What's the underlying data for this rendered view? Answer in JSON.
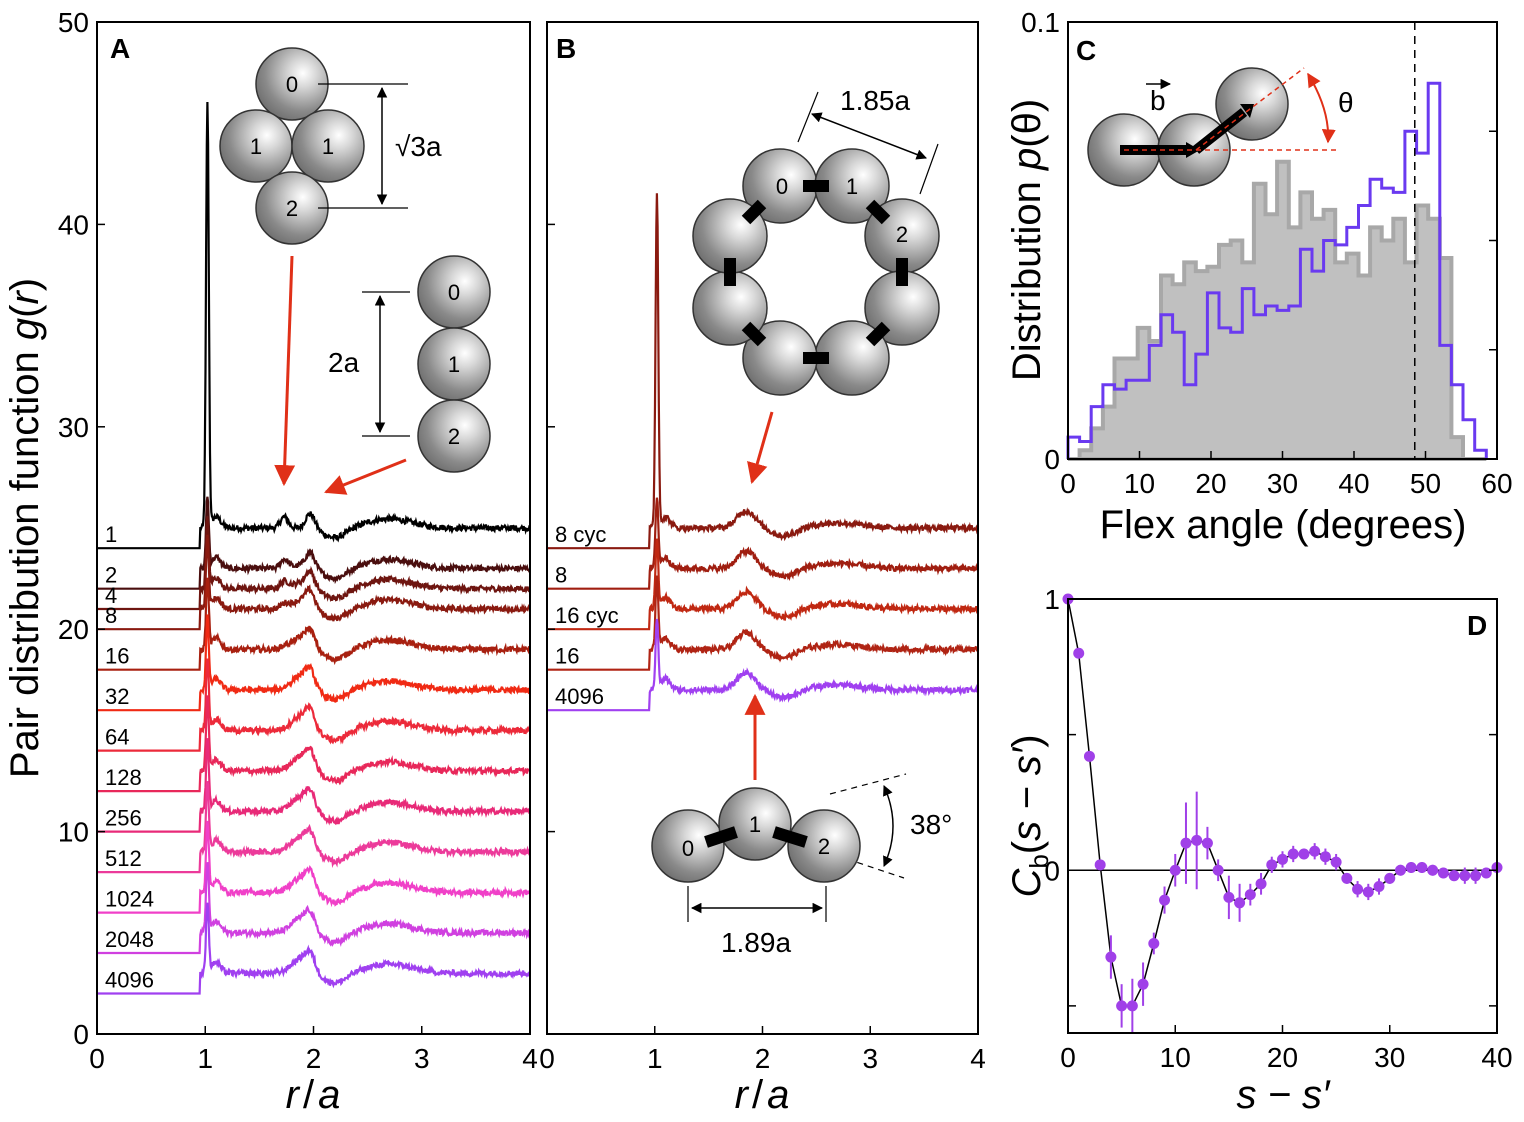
{
  "chart_data": [
    {
      "panel": "A",
      "type": "line",
      "ylabel_main": "Pair distribution function ",
      "ylabel_var": "g",
      "ylabel_arg": "r",
      "xlabel_var1": "r",
      "xlabel_sep": "/",
      "xlabel_var2": "a",
      "xlim": [
        0,
        4
      ],
      "ylim": [
        0,
        50
      ],
      "xticks": [
        "0",
        "1",
        "2",
        "3",
        "4"
      ],
      "yticks": [
        "0",
        "10",
        "20",
        "30",
        "40",
        "50"
      ],
      "series": [
        {
          "name": "1",
          "offset": 24,
          "color": "#000000"
        },
        {
          "name": "2",
          "offset": 22,
          "color": "#4a0e0e"
        },
        {
          "name": "4",
          "offset": 21,
          "color": "#6e1510"
        },
        {
          "name": "8",
          "offset": 20,
          "color": "#8a1a10"
        },
        {
          "name": "16",
          "offset": 18,
          "color": "#a82010"
        },
        {
          "name": "32",
          "offset": 16,
          "color": "#f02a14"
        },
        {
          "name": "64",
          "offset": 14,
          "color": "#ec2a3a"
        },
        {
          "name": "128",
          "offset": 12,
          "color": "#e8285a"
        },
        {
          "name": "256",
          "offset": 10,
          "color": "#e82a78"
        },
        {
          "name": "512",
          "offset": 8,
          "color": "#ec3a9a"
        },
        {
          "name": "1024",
          "offset": 6,
          "color": "#f040c8"
        },
        {
          "name": "2048",
          "offset": 4,
          "color": "#d040e0"
        },
        {
          "name": "4096",
          "offset": 2,
          "color": "#a040f0"
        }
      ],
      "peak_height_first": 45,
      "annotations": {
        "triangle_height": "√3a",
        "chain_length": "2a",
        "sphere_labels_cluster": [
          "0",
          "1",
          "1",
          "2"
        ],
        "sphere_labels_chain": [
          "0",
          "1",
          "2"
        ]
      }
    },
    {
      "panel": "B",
      "type": "line",
      "xlabel_var1": "r",
      "xlabel_sep": "/",
      "xlabel_var2": "a",
      "xlim": [
        0,
        4
      ],
      "ylim": [
        0,
        50
      ],
      "xticks": [
        "0",
        "1",
        "2",
        "3",
        "4"
      ],
      "series": [
        {
          "name": "8 cyc",
          "offset": 24,
          "color": "#8a1a10"
        },
        {
          "name": "8",
          "offset": 22,
          "color": "#a01e10"
        },
        {
          "name": "16 cyc",
          "offset": 20,
          "color": "#c02812"
        },
        {
          "name": "16",
          "offset": 18,
          "color": "#b02414"
        },
        {
          "name": "4096",
          "offset": 16,
          "color": "#a040f0"
        }
      ],
      "peak_height_first": 40.5,
      "annotations": {
        "ring_diameter": "1.85a",
        "ring_labels": [
          "0",
          "1",
          "2"
        ],
        "chain_span": "1.89a",
        "angle": "38°",
        "chain_labels": [
          "0",
          "1",
          "2"
        ]
      }
    },
    {
      "panel": "C",
      "type": "histogram",
      "ylabel_main": "Distribution ",
      "ylabel_var": "p",
      "ylabel_arg": "θ",
      "xlabel": "Flex angle (degrees)",
      "xlim": [
        0,
        60
      ],
      "ylim": [
        0,
        0.1
      ],
      "xticks": [
        "0",
        "10",
        "20",
        "30",
        "40",
        "50",
        "60"
      ],
      "yticks": [
        "0",
        "0.1"
      ],
      "bin_width": 1.625,
      "gray_values": [
        0.0,
        0.002,
        0.007,
        0.012,
        0.023,
        0.023,
        0.03,
        0.027,
        0.042,
        0.04,
        0.045,
        0.043,
        0.044,
        0.049,
        0.05,
        0.045,
        0.063,
        0.056,
        0.068,
        0.053,
        0.061,
        0.055,
        0.057,
        0.045,
        0.047,
        0.042,
        0.053,
        0.05,
        0.055,
        0.045,
        0.058,
        0.055,
        0.046,
        0.005,
        0.0,
        0.0
      ],
      "purple_values": [
        0.005,
        0.004,
        0.012,
        0.017,
        0.016,
        0.018,
        0.018,
        0.026,
        0.033,
        0.029,
        0.017,
        0.024,
        0.038,
        0.03,
        0.029,
        0.039,
        0.033,
        0.035,
        0.034,
        0.035,
        0.048,
        0.043,
        0.05,
        0.049,
        0.053,
        0.058,
        0.064,
        0.062,
        0.061,
        0.075,
        0.07,
        0.086,
        0.026,
        0.017,
        0.009,
        0.002
      ],
      "dashed_x": 48.5,
      "annotations": {
        "vector": "b",
        "angle": "θ"
      }
    },
    {
      "panel": "D",
      "type": "scatter",
      "ylabel_var": "C",
      "ylabel_sub": "b",
      "ylabel_arg": "s − s′",
      "xlabel": "s − s′",
      "xlim": [
        0,
        40
      ],
      "ylim": [
        -0.6,
        1.0
      ],
      "xticks": [
        "0",
        "10",
        "20",
        "30",
        "40"
      ],
      "yticks": [
        "0",
        "1"
      ],
      "x": [
        0,
        1,
        2,
        3,
        4,
        5,
        6,
        7,
        8,
        9,
        10,
        11,
        12,
        13,
        14,
        15,
        16,
        17,
        18,
        19,
        20,
        21,
        22,
        23,
        24,
        25,
        26,
        27,
        28,
        29,
        30,
        31,
        32,
        33,
        34,
        35,
        36,
        37,
        38,
        39,
        40
      ],
      "y": [
        1.0,
        0.8,
        0.42,
        0.02,
        -0.32,
        -0.5,
        -0.5,
        -0.42,
        -0.27,
        -0.11,
        0.0,
        0.1,
        0.11,
        0.1,
        0.0,
        -0.1,
        -0.12,
        -0.09,
        -0.05,
        0.02,
        0.04,
        0.06,
        0.06,
        0.07,
        0.05,
        0.03,
        -0.03,
        -0.07,
        -0.08,
        -0.06,
        -0.03,
        0.0,
        0.01,
        0.01,
        0.0,
        -0.01,
        -0.02,
        -0.02,
        -0.02,
        -0.01,
        0.01
      ],
      "err": [
        0,
        0,
        0,
        0,
        0.08,
        0.08,
        0.1,
        0.08,
        0.04,
        0.05,
        0.06,
        0.15,
        0.18,
        0.06,
        0.04,
        0.08,
        0.07,
        0.04,
        0.04,
        0.03,
        0.03,
        0.03,
        0.02,
        0.03,
        0.03,
        0.03,
        0.02,
        0.03,
        0.03,
        0.03,
        0.02,
        0.02,
        0.02,
        0.02,
        0.02,
        0.02,
        0.02,
        0.03,
        0.03,
        0.02,
        0.02
      ],
      "color": "#a040e8"
    }
  ]
}
